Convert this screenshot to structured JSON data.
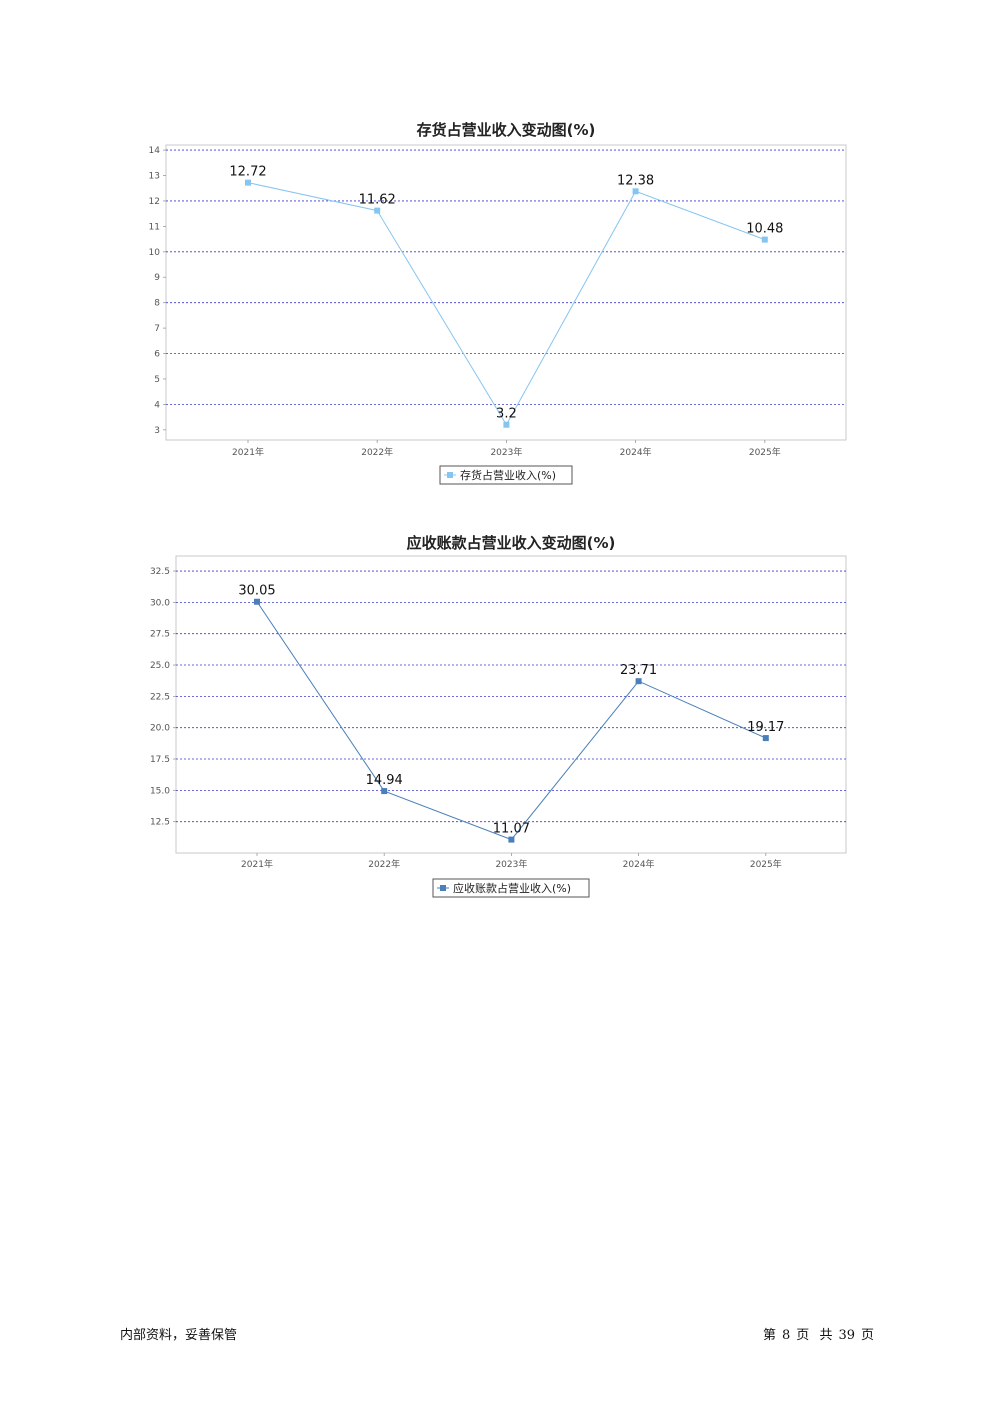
{
  "chart_data": [
    {
      "type": "line",
      "title": "存货占营业收入变动图(%)",
      "categories": [
        "2021年",
        "2022年",
        "2023年",
        "2024年",
        "2025年"
      ],
      "series": [
        {
          "name": "存货占营业收入(%)",
          "values": [
            12.72,
            11.62,
            3.2,
            12.38,
            10.48
          ],
          "color": "#86c5f0"
        }
      ],
      "value_labels": [
        "12.72",
        "11.62",
        "3.2",
        "12.38",
        "10.48"
      ],
      "yticks": [
        3,
        4,
        5,
        6,
        7,
        8,
        9,
        10,
        11,
        12,
        13,
        14
      ],
      "ylim": [
        2.6,
        14.2
      ],
      "grid_values": [
        4,
        6,
        8,
        10,
        12,
        14
      ],
      "grid": true,
      "legend": "bottom"
    },
    {
      "type": "line",
      "title": "应收账款占营业收入变动图(%)",
      "categories": [
        "2021年",
        "2022年",
        "2023年",
        "2024年",
        "2025年"
      ],
      "series": [
        {
          "name": "应收账款占营业收入(%)",
          "values": [
            30.05,
            14.94,
            11.07,
            23.71,
            19.17
          ],
          "color": "#4a7fba"
        }
      ],
      "value_labels": [
        "30.05",
        "14.94",
        "11.07",
        "23.71",
        "19.17"
      ],
      "yticks": [
        "12.5",
        "15.0",
        "17.5",
        "20.0",
        "22.5",
        "25.0",
        "27.5",
        "30.0",
        "32.5"
      ],
      "ylim": [
        10.0,
        33.7
      ],
      "grid_values": [
        12.5,
        15.0,
        17.5,
        20.0,
        22.5,
        25.0,
        27.5,
        30.0,
        32.5
      ],
      "grid": true,
      "legend": "bottom"
    }
  ],
  "footer": {
    "left": "内部资料，妥善保管",
    "page_prefix": "第",
    "page_number": "8",
    "page_word": "页",
    "total_prefix": "共",
    "total_pages": "39",
    "total_word": "页"
  }
}
